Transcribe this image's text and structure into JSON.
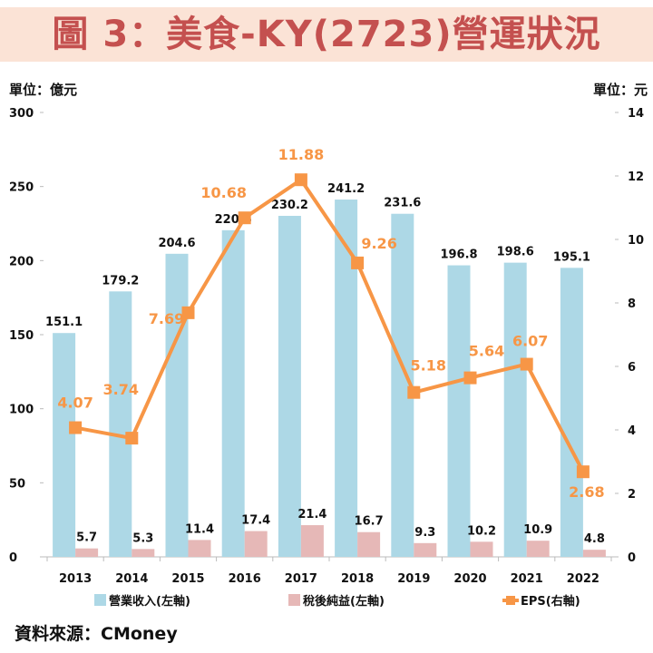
{
  "title": "圖 3：美食-KY(2723)營運狀況",
  "left_unit": "單位：億元",
  "right_unit": "單位：元",
  "source": "資料來源：CMoney",
  "chart_data": {
    "type": "bar+line",
    "categories": [
      "2013",
      "2014",
      "2015",
      "2016",
      "2017",
      "2018",
      "2019",
      "2020",
      "2021",
      "2022"
    ],
    "y_left": {
      "range": [
        0,
        300
      ],
      "ticks": [
        0,
        50,
        100,
        150,
        200,
        250,
        300
      ]
    },
    "y_right": {
      "range": [
        0,
        14
      ],
      "ticks": [
        0,
        2,
        4,
        6,
        8,
        10,
        12,
        14
      ]
    },
    "grid": false,
    "legend_position": "bottom",
    "series": [
      {
        "name": "營業收入(左軸)",
        "type": "bar",
        "axis": "left",
        "color": "#add8e6",
        "values": [
          151.1,
          179.2,
          204.6,
          220.5,
          230.2,
          241.2,
          231.6,
          196.8,
          198.6,
          195.1
        ]
      },
      {
        "name": "稅後純益(左軸)",
        "type": "bar",
        "axis": "left",
        "color": "#e6b8b7",
        "values": [
          5.7,
          5.3,
          11.4,
          17.4,
          21.4,
          16.7,
          9.3,
          10.2,
          10.9,
          4.8
        ]
      },
      {
        "name": "EPS(右軸)",
        "type": "line",
        "axis": "right",
        "color": "#f79646",
        "values": [
          4.07,
          3.74,
          7.69,
          10.68,
          11.88,
          9.26,
          5.18,
          5.64,
          6.07,
          2.68
        ]
      }
    ]
  }
}
